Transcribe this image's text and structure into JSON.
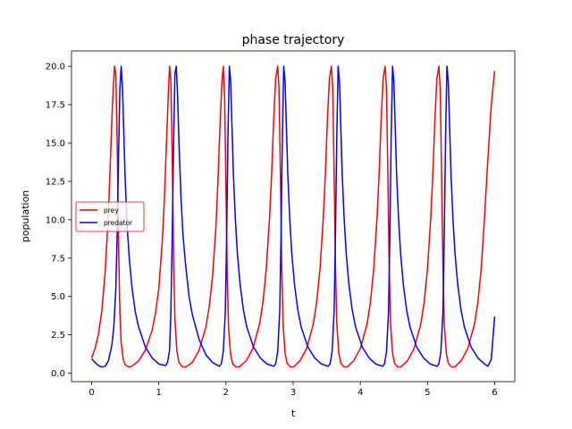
{
  "chart_data": {
    "type": "line",
    "title": "phase trajectory",
    "xlabel": "t",
    "ylabel": "population",
    "xlim": [
      -0.3,
      6.3
    ],
    "ylim": [
      -0.55,
      21.0
    ],
    "xticks": [
      "0",
      "1",
      "2",
      "3",
      "4",
      "5",
      "6"
    ],
    "yticks": [
      "0.0",
      "2.5",
      "5.0",
      "7.5",
      "10.0",
      "12.5",
      "15.0",
      "17.5",
      "20.0"
    ],
    "legend_position": "center-left",
    "grid": false,
    "series": [
      {
        "name": "prey",
        "color": "#ff0000",
        "x": [
          0.0,
          0.05,
          0.1,
          0.15,
          0.2,
          0.25,
          0.28,
          0.31,
          0.34,
          0.36,
          0.38,
          0.4,
          0.42,
          0.44,
          0.47,
          0.5,
          0.55,
          0.6,
          0.7,
          0.8,
          0.9,
          0.95,
          1.0,
          1.05,
          1.08,
          1.11,
          1.14,
          1.16,
          1.18,
          1.2,
          1.22,
          1.24,
          1.27,
          1.3,
          1.35,
          1.4,
          1.5,
          1.6,
          1.7,
          1.75,
          1.8,
          1.85,
          1.88,
          1.91,
          1.94,
          1.96,
          1.98,
          2.0,
          2.02,
          2.04,
          2.07,
          2.1,
          2.15,
          2.2,
          2.3,
          2.4,
          2.5,
          2.55,
          2.6,
          2.65,
          2.68,
          2.71,
          2.74,
          2.77,
          2.79,
          2.81,
          2.83,
          2.85,
          2.88,
          2.91,
          2.96,
          3.01,
          3.1,
          3.2,
          3.3,
          3.35,
          3.4,
          3.45,
          3.48,
          3.51,
          3.54,
          3.57,
          3.59,
          3.61,
          3.63,
          3.65,
          3.68,
          3.71,
          3.76,
          3.81,
          3.9,
          4.0,
          4.1,
          4.15,
          4.2,
          4.25,
          4.28,
          4.31,
          4.34,
          4.37,
          4.39,
          4.41,
          4.43,
          4.45,
          4.48,
          4.51,
          4.56,
          4.61,
          4.7,
          4.8,
          4.9,
          4.95,
          5.0,
          5.05,
          5.08,
          5.11,
          5.14,
          5.17,
          5.19,
          5.21,
          5.23,
          5.25,
          5.28,
          5.31,
          5.36,
          5.41,
          5.5,
          5.6,
          5.7,
          5.75,
          5.8,
          5.85,
          5.9,
          5.95,
          6.0
        ],
        "y": [
          1.0,
          1.6,
          2.5,
          4.0,
          6.5,
          10.5,
          14.0,
          17.5,
          20.0,
          19.5,
          15.0,
          8.5,
          4.0,
          2.0,
          0.9,
          0.55,
          0.4,
          0.45,
          0.8,
          1.5,
          2.8,
          3.9,
          5.5,
          8.5,
          11.0,
          14.5,
          18.0,
          20.0,
          19.0,
          14.0,
          7.5,
          3.5,
          1.4,
          0.7,
          0.42,
          0.4,
          0.7,
          1.5,
          3.0,
          4.3,
          6.3,
          9.5,
          12.5,
          16.0,
          19.0,
          20.0,
          18.0,
          12.0,
          6.0,
          2.8,
          1.2,
          0.6,
          0.4,
          0.42,
          0.8,
          1.6,
          3.2,
          4.6,
          6.8,
          10.2,
          13.0,
          16.5,
          19.2,
          20.0,
          18.5,
          13.0,
          7.0,
          3.2,
          1.3,
          0.65,
          0.4,
          0.42,
          0.8,
          1.6,
          3.2,
          4.6,
          6.8,
          10.2,
          13.0,
          16.5,
          19.2,
          20.0,
          18.5,
          13.0,
          7.0,
          3.2,
          1.3,
          0.65,
          0.4,
          0.42,
          0.8,
          1.6,
          3.2,
          4.6,
          6.8,
          10.2,
          13.0,
          16.5,
          19.2,
          20.0,
          18.5,
          13.0,
          7.0,
          3.2,
          1.3,
          0.65,
          0.4,
          0.42,
          0.8,
          1.6,
          3.2,
          4.6,
          6.8,
          10.2,
          13.0,
          16.5,
          19.2,
          20.0,
          18.5,
          13.0,
          7.0,
          3.2,
          1.3,
          0.65,
          0.4,
          0.42,
          0.8,
          1.6,
          3.2,
          4.6,
          6.8,
          10.2,
          14.0,
          17.5,
          19.7
        ]
      },
      {
        "name": "predator",
        "color": "#0000ff",
        "x": [
          0.0,
          0.05,
          0.1,
          0.15,
          0.2,
          0.25,
          0.3,
          0.33,
          0.36,
          0.38,
          0.4,
          0.42,
          0.44,
          0.46,
          0.48,
          0.5,
          0.53,
          0.56,
          0.6,
          0.65,
          0.7,
          0.8,
          0.9,
          1.0,
          1.1,
          1.13,
          1.16,
          1.18,
          1.2,
          1.22,
          1.24,
          1.26,
          1.28,
          1.3,
          1.33,
          1.36,
          1.4,
          1.45,
          1.5,
          1.6,
          1.7,
          1.8,
          1.9,
          1.93,
          1.96,
          1.99,
          2.01,
          2.03,
          2.05,
          2.07,
          2.09,
          2.11,
          2.14,
          2.17,
          2.21,
          2.26,
          2.31,
          2.41,
          2.51,
          2.61,
          2.71,
          2.74,
          2.77,
          2.8,
          2.82,
          2.84,
          2.86,
          2.88,
          2.9,
          2.92,
          2.95,
          2.98,
          3.02,
          3.07,
          3.12,
          3.22,
          3.32,
          3.42,
          3.52,
          3.55,
          3.58,
          3.61,
          3.63,
          3.65,
          3.67,
          3.69,
          3.71,
          3.73,
          3.76,
          3.79,
          3.83,
          3.88,
          3.93,
          4.03,
          4.13,
          4.23,
          4.33,
          4.36,
          4.39,
          4.42,
          4.44,
          4.46,
          4.48,
          4.5,
          4.52,
          4.54,
          4.57,
          4.6,
          4.64,
          4.69,
          4.74,
          4.84,
          4.94,
          5.04,
          5.14,
          5.17,
          5.2,
          5.23,
          5.25,
          5.27,
          5.29,
          5.31,
          5.33,
          5.35,
          5.38,
          5.41,
          5.45,
          5.5,
          5.55,
          5.65,
          5.75,
          5.85,
          5.9,
          5.95,
          6.0
        ],
        "y": [
          0.95,
          0.7,
          0.5,
          0.4,
          0.45,
          0.8,
          1.8,
          3.0,
          5.5,
          9.0,
          14.0,
          18.5,
          20.0,
          18.5,
          15.5,
          12.5,
          9.5,
          7.5,
          5.6,
          4.0,
          3.0,
          1.7,
          1.0,
          0.6,
          0.5,
          0.7,
          1.5,
          4.0,
          9.0,
          15.0,
          19.5,
          20.0,
          18.0,
          15.0,
          11.5,
          9.0,
          7.0,
          5.0,
          3.8,
          2.2,
          1.2,
          0.7,
          0.45,
          0.6,
          1.4,
          4.0,
          9.0,
          15.5,
          20.0,
          19.0,
          16.0,
          13.0,
          10.0,
          7.8,
          5.8,
          4.1,
          3.0,
          1.7,
          1.0,
          0.6,
          0.45,
          0.6,
          1.4,
          4.0,
          9.0,
          15.5,
          20.0,
          19.0,
          16.0,
          13.0,
          10.0,
          7.8,
          5.8,
          4.1,
          3.0,
          1.7,
          1.0,
          0.6,
          0.45,
          0.6,
          1.4,
          4.0,
          9.0,
          15.5,
          20.0,
          19.0,
          16.0,
          13.0,
          10.0,
          7.8,
          5.8,
          4.1,
          3.0,
          1.7,
          1.0,
          0.6,
          0.45,
          0.6,
          1.4,
          4.0,
          9.0,
          15.5,
          20.0,
          19.0,
          16.0,
          13.0,
          10.0,
          7.8,
          5.8,
          4.1,
          3.0,
          1.7,
          1.0,
          0.6,
          0.45,
          0.6,
          1.4,
          4.0,
          9.0,
          15.5,
          20.0,
          19.0,
          16.0,
          13.0,
          10.0,
          7.8,
          5.8,
          4.1,
          3.0,
          1.7,
          1.0,
          0.6,
          0.45,
          0.9,
          3.7
        ]
      }
    ]
  }
}
